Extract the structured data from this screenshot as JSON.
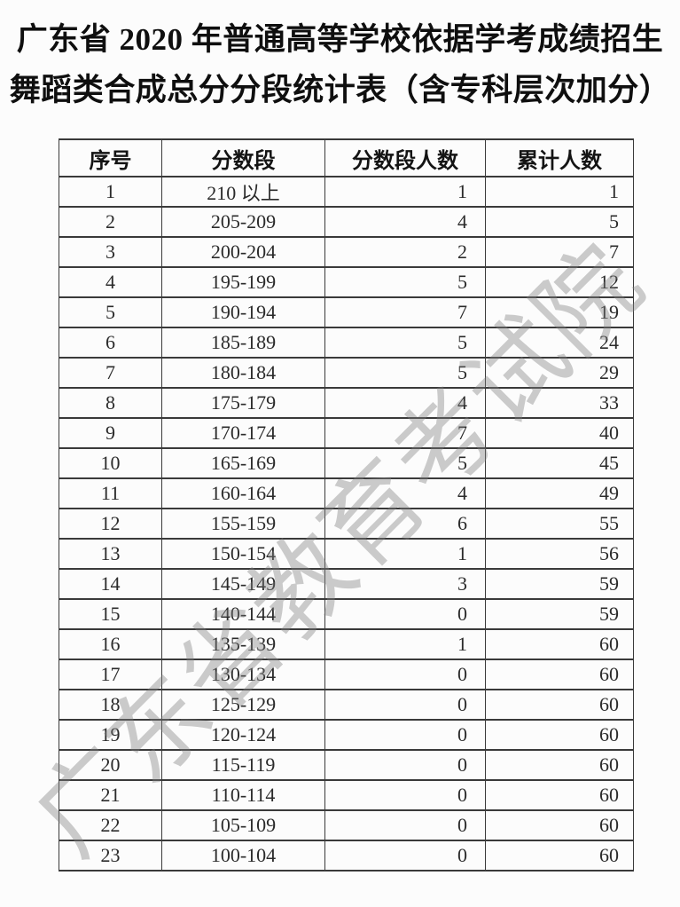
{
  "title": {
    "line1": "广东省 2020 年普通高等学校依据学考成绩招生",
    "line2": "舞蹈类合成总分分段统计表（含专科层次加分）"
  },
  "watermark": "广东省教育考试院",
  "table": {
    "headers": [
      "序号",
      "分数段",
      "分数段人数",
      "累计人数"
    ],
    "rows": [
      [
        "1",
        "210 以上",
        "1",
        "1"
      ],
      [
        "2",
        "205-209",
        "4",
        "5"
      ],
      [
        "3",
        "200-204",
        "2",
        "7"
      ],
      [
        "4",
        "195-199",
        "5",
        "12"
      ],
      [
        "5",
        "190-194",
        "7",
        "19"
      ],
      [
        "6",
        "185-189",
        "5",
        "24"
      ],
      [
        "7",
        "180-184",
        "5",
        "29"
      ],
      [
        "8",
        "175-179",
        "4",
        "33"
      ],
      [
        "9",
        "170-174",
        "7",
        "40"
      ],
      [
        "10",
        "165-169",
        "5",
        "45"
      ],
      [
        "11",
        "160-164",
        "4",
        "49"
      ],
      [
        "12",
        "155-159",
        "6",
        "55"
      ],
      [
        "13",
        "150-154",
        "1",
        "56"
      ],
      [
        "14",
        "145-149",
        "3",
        "59"
      ],
      [
        "15",
        "140-144",
        "0",
        "59"
      ],
      [
        "16",
        "135-139",
        "1",
        "60"
      ],
      [
        "17",
        "130-134",
        "0",
        "60"
      ],
      [
        "18",
        "125-129",
        "0",
        "60"
      ],
      [
        "19",
        "120-124",
        "0",
        "60"
      ],
      [
        "20",
        "115-119",
        "0",
        "60"
      ],
      [
        "21",
        "110-114",
        "0",
        "60"
      ],
      [
        "22",
        "105-109",
        "0",
        "60"
      ],
      [
        "23",
        "100-104",
        "0",
        "60"
      ]
    ]
  },
  "colors": {
    "background": "#fcfcfc",
    "title_text": "#0f0f0f",
    "table_border": "#3a3a3a",
    "cell_text": "#2b2b2b",
    "watermark_gray": "#c3c3c3"
  }
}
